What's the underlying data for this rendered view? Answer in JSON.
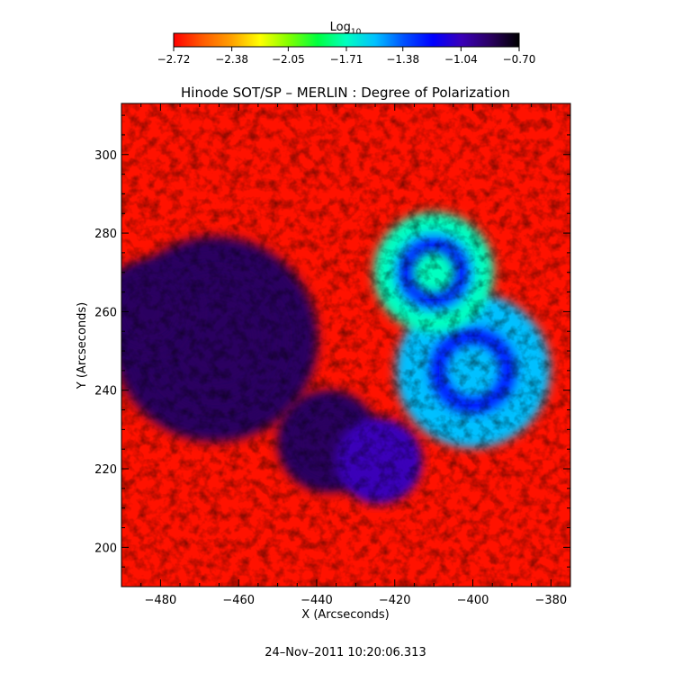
{
  "chart_data": {
    "type": "heatmap",
    "title": "Hinode SOT/SP – MERLIN : Degree of Polarization",
    "xlabel": "X (Arcseconds)",
    "ylabel": "Y (Arcseconds)",
    "timestamp": "24–Nov–2011 10:20:06.313",
    "xlim": [
      -490,
      -375
    ],
    "ylim": [
      190,
      313
    ],
    "x_ticks": [
      -480,
      -460,
      -440,
      -420,
      -400,
      -380
    ],
    "y_ticks": [
      200,
      220,
      240,
      260,
      280,
      300
    ],
    "x_tick_labels": [
      "−480",
      "−460",
      "−440",
      "−420",
      "−400",
      "−380"
    ],
    "y_tick_labels": [
      "200",
      "220",
      "240",
      "260",
      "280",
      "300"
    ],
    "colorbar": {
      "label": "Log",
      "label_subscript": "10",
      "range": [
        -2.72,
        -0.7
      ],
      "ticks": [
        -2.72,
        -2.38,
        -2.05,
        -1.71,
        -1.38,
        -1.04,
        -0.7
      ],
      "tick_labels": [
        "−2.72",
        "−2.38",
        "−2.05",
        "−1.71",
        "−1.38",
        "−1.04",
        "−0.70"
      ],
      "colormap": [
        "#ff0000",
        "#ff5a00",
        "#ffa000",
        "#ffff00",
        "#80ff00",
        "#00ff40",
        "#00ffc0",
        "#00c0ff",
        "#0050ff",
        "#0000ff",
        "#3a00b8",
        "#2a0060",
        "#000000"
      ]
    },
    "features": [
      {
        "x": -466,
        "y": 253,
        "r": 12,
        "value": -0.82
      },
      {
        "x": -483,
        "y": 260,
        "r": 6,
        "value": -0.9
      },
      {
        "x": -437,
        "y": 227,
        "r": 6,
        "value": -0.92
      },
      {
        "x": -424,
        "y": 222,
        "r": 5,
        "value": -1.0
      },
      {
        "x": -400,
        "y": 245,
        "r": 9,
        "value": -1.6
      },
      {
        "x": -410,
        "y": 270,
        "r": 7,
        "value": -1.75
      }
    ]
  }
}
